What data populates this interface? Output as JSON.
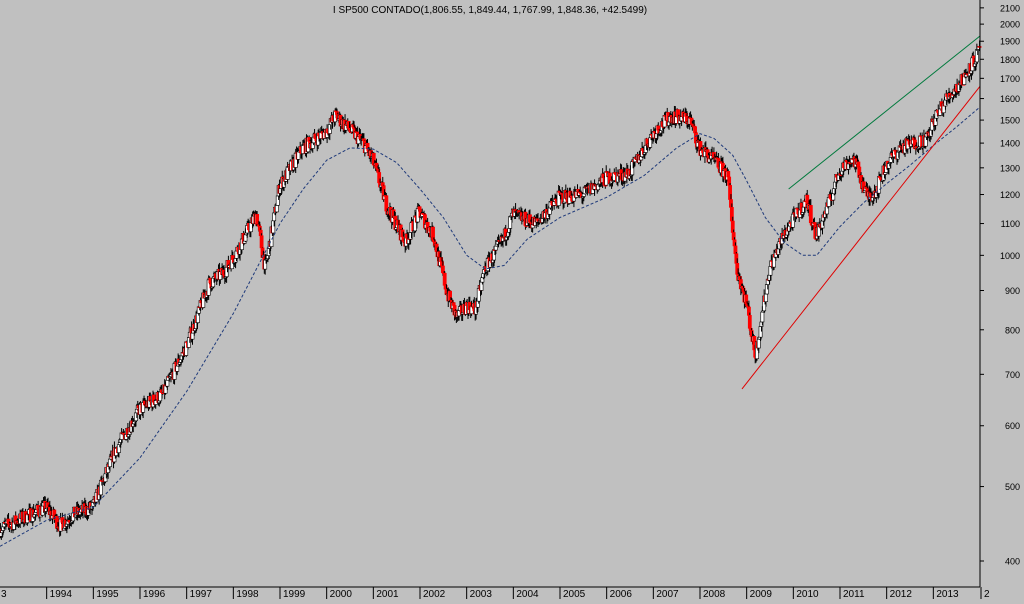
{
  "chart_data": {
    "type": "candlestick",
    "title": "I SP500 CONTADO(1,806.55, 1,849.44, 1,767.99, 1,848.36, +42.5499)",
    "scale": "log",
    "grid": false,
    "y_ticks": [
      400,
      500,
      600,
      700,
      800,
      900,
      1000,
      1100,
      1200,
      1300,
      1400,
      1500,
      1600,
      1700,
      1800,
      1900,
      2000,
      2100
    ],
    "ylim": [
      370,
      2150
    ],
    "x_range": [
      1993.0,
      2014.0
    ],
    "x_tick_labels": [
      "3",
      "1994",
      "1995",
      "1996",
      "1997",
      "1998",
      "1999",
      "2000",
      "2001",
      "2002",
      "2003",
      "2004",
      "2005",
      "2006",
      "2007",
      "2008",
      "2009",
      "2010",
      "2011",
      "2012",
      "2013",
      "2"
    ],
    "colors": {
      "background": "#c0c0c0",
      "up_candle": "#ffffff",
      "down_candle": "#ff0000",
      "wick": "#000000",
      "moving_average": "#1f3a7a",
      "support_line": "#e00000",
      "resistance_line": "#007a3d"
    },
    "price_path": [
      [
        1993.0,
        440
      ],
      [
        1993.5,
        455
      ],
      [
        1994.0,
        470
      ],
      [
        1994.3,
        445
      ],
      [
        1994.6,
        460
      ],
      [
        1995.0,
        470
      ],
      [
        1995.5,
        560
      ],
      [
        1996.0,
        630
      ],
      [
        1996.5,
        660
      ],
      [
        1997.0,
        760
      ],
      [
        1997.5,
        920
      ],
      [
        1997.8,
        950
      ],
      [
        1998.0,
        990
      ],
      [
        1998.5,
        1130
      ],
      [
        1998.7,
        960
      ],
      [
        1999.0,
        1230
      ],
      [
        1999.5,
        1380
      ],
      [
        2000.0,
        1450
      ],
      [
        2000.2,
        1520
      ],
      [
        2000.5,
        1460
      ],
      [
        2000.8,
        1400
      ],
      [
        2001.0,
        1330
      ],
      [
        2001.3,
        1160
      ],
      [
        2001.7,
        1040
      ],
      [
        2002.0,
        1140
      ],
      [
        2002.3,
        1060
      ],
      [
        2002.6,
        890
      ],
      [
        2002.8,
        830
      ],
      [
        2003.0,
        860
      ],
      [
        2003.2,
        850
      ],
      [
        2003.4,
        960
      ],
      [
        2003.8,
        1050
      ],
      [
        2004.0,
        1130
      ],
      [
        2004.5,
        1100
      ],
      [
        2005.0,
        1190
      ],
      [
        2005.5,
        1200
      ],
      [
        2006.0,
        1260
      ],
      [
        2006.5,
        1280
      ],
      [
        2007.0,
        1440
      ],
      [
        2007.4,
        1520
      ],
      [
        2007.8,
        1500
      ],
      [
        2008.0,
        1380
      ],
      [
        2008.3,
        1330
      ],
      [
        2008.6,
        1270
      ],
      [
        2008.8,
        960
      ],
      [
        2009.0,
        870
      ],
      [
        2009.2,
        740
      ],
      [
        2009.5,
        960
      ],
      [
        2009.8,
        1060
      ],
      [
        2010.0,
        1110
      ],
      [
        2010.3,
        1180
      ],
      [
        2010.5,
        1060
      ],
      [
        2010.8,
        1180
      ],
      [
        2011.0,
        1290
      ],
      [
        2011.3,
        1340
      ],
      [
        2011.6,
        1190
      ],
      [
        2011.8,
        1220
      ],
      [
        2012.0,
        1310
      ],
      [
        2012.3,
        1380
      ],
      [
        2012.6,
        1400
      ],
      [
        2012.9,
        1420
      ],
      [
        2013.0,
        1490
      ],
      [
        2013.3,
        1600
      ],
      [
        2013.6,
        1680
      ],
      [
        2013.9,
        1800
      ],
      [
        2014.0,
        1848
      ]
    ],
    "moving_average": [
      [
        1993.0,
        418
      ],
      [
        1994.0,
        452
      ],
      [
        1995.0,
        470
      ],
      [
        1996.0,
        545
      ],
      [
        1997.0,
        665
      ],
      [
        1998.0,
        840
      ],
      [
        1999.0,
        1100
      ],
      [
        1999.5,
        1220
      ],
      [
        2000.0,
        1330
      ],
      [
        2000.5,
        1380
      ],
      [
        2001.0,
        1375
      ],
      [
        2001.5,
        1320
      ],
      [
        2002.0,
        1220
      ],
      [
        2002.5,
        1120
      ],
      [
        2003.0,
        1000
      ],
      [
        2003.4,
        960
      ],
      [
        2003.8,
        970
      ],
      [
        2004.3,
        1050
      ],
      [
        2005.0,
        1120
      ],
      [
        2006.0,
        1190
      ],
      [
        2006.8,
        1270
      ],
      [
        2007.5,
        1380
      ],
      [
        2008.0,
        1440
      ],
      [
        2008.3,
        1420
      ],
      [
        2008.7,
        1350
      ],
      [
        2009.0,
        1250
      ],
      [
        2009.4,
        1120
      ],
      [
        2009.8,
        1040
      ],
      [
        2010.2,
        1000
      ],
      [
        2010.5,
        1000
      ],
      [
        2011.0,
        1090
      ],
      [
        2011.5,
        1170
      ],
      [
        2012.0,
        1240
      ],
      [
        2012.5,
        1310
      ],
      [
        2013.0,
        1390
      ],
      [
        2013.5,
        1470
      ],
      [
        2014.0,
        1560
      ]
    ],
    "support_line": [
      [
        2008.9,
        670
      ],
      [
        2014.0,
        1660
      ]
    ],
    "resistance_line": [
      [
        2009.9,
        1220
      ],
      [
        2014.0,
        1930
      ]
    ]
  }
}
